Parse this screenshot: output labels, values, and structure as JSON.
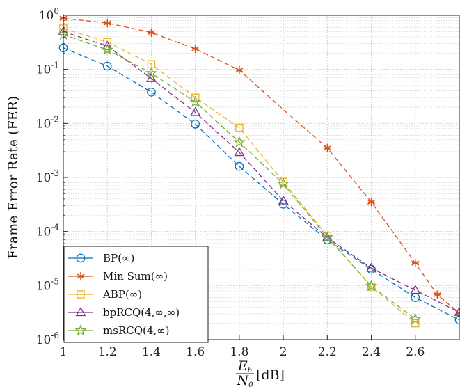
{
  "chart_data": {
    "type": "line",
    "title": "",
    "ylabel": "Frame Error Rate (FER)",
    "xlabel": {
      "num": "E",
      "num_sub": "b",
      "den": "N",
      "den_sub": "0",
      "suffix": "[dB]"
    },
    "xlim": [
      1,
      2.8
    ],
    "ylim": [
      1e-06,
      1
    ],
    "yscale": "log",
    "grid": true,
    "legend_position": "bottom-left",
    "x_ticks": [
      "1",
      "1.2",
      "1.4",
      "1.6",
      "1.8",
      "2",
      "2.2",
      "2.4",
      "2.6"
    ],
    "y_ticks": [
      {
        "base": "10",
        "exp": "0"
      },
      {
        "base": "10",
        "exp": "-1"
      },
      {
        "base": "10",
        "exp": "-2"
      },
      {
        "base": "10",
        "exp": "-3"
      },
      {
        "base": "10",
        "exp": "-4"
      },
      {
        "base": "10",
        "exp": "-5"
      },
      {
        "base": "10",
        "exp": "-6"
      }
    ],
    "series": [
      {
        "name": "BP(∞)",
        "color": "#0072bd",
        "marker": "circle",
        "x": [
          1,
          1.2,
          1.4,
          1.6,
          1.8,
          2,
          2.2,
          2.4,
          2.6,
          2.8
        ],
        "y": [
          0.25,
          0.115,
          0.038,
          0.0097,
          0.0016,
          0.00032,
          7e-05,
          2e-05,
          6e-06,
          2.3e-06
        ]
      },
      {
        "name": "Min Sum(∞)",
        "color": "#d95319",
        "marker": "asterisk",
        "x": [
          1,
          1.2,
          1.4,
          1.6,
          1.8,
          2,
          2.2,
          2.4,
          2.6,
          2.7,
          2.8
        ],
        "y": [
          0.88,
          0.72,
          0.48,
          0.24,
          0.097,
          0.018,
          0.0035,
          0.00035,
          2.6e-05,
          6.8e-06,
          3.1e-06
        ]
      },
      {
        "name": "ABP(∞)",
        "color": "#edb120",
        "marker": "square",
        "x": [
          1,
          1.2,
          1.4,
          1.6,
          1.8,
          2,
          2.2,
          2.4,
          2.6
        ],
        "y": [
          0.57,
          0.32,
          0.125,
          0.03,
          0.0083,
          0.00083,
          8.3e-05,
          9.5e-06,
          2e-06
        ]
      },
      {
        "name": "bpRCQ(4,∞,∞)",
        "color": "#7e2f8e",
        "marker": "triangle",
        "x": [
          1,
          1.2,
          1.4,
          1.6,
          1.8,
          2,
          2.2,
          2.4,
          2.6,
          2.8
        ],
        "y": [
          0.5,
          0.27,
          0.068,
          0.016,
          0.0029,
          0.00037,
          7.7e-05,
          2.1e-05,
          8.2e-06,
          3.2e-06
        ]
      },
      {
        "name": "msRCQ(4,∞)",
        "color": "#77ac30",
        "marker": "star",
        "x": [
          1,
          1.2,
          1.4,
          1.6,
          1.8,
          2,
          2.2,
          2.4,
          2.6
        ],
        "y": [
          0.44,
          0.23,
          0.085,
          0.025,
          0.0045,
          0.00076,
          7.8e-05,
          9.8e-06,
          2.4e-06
        ]
      }
    ]
  }
}
